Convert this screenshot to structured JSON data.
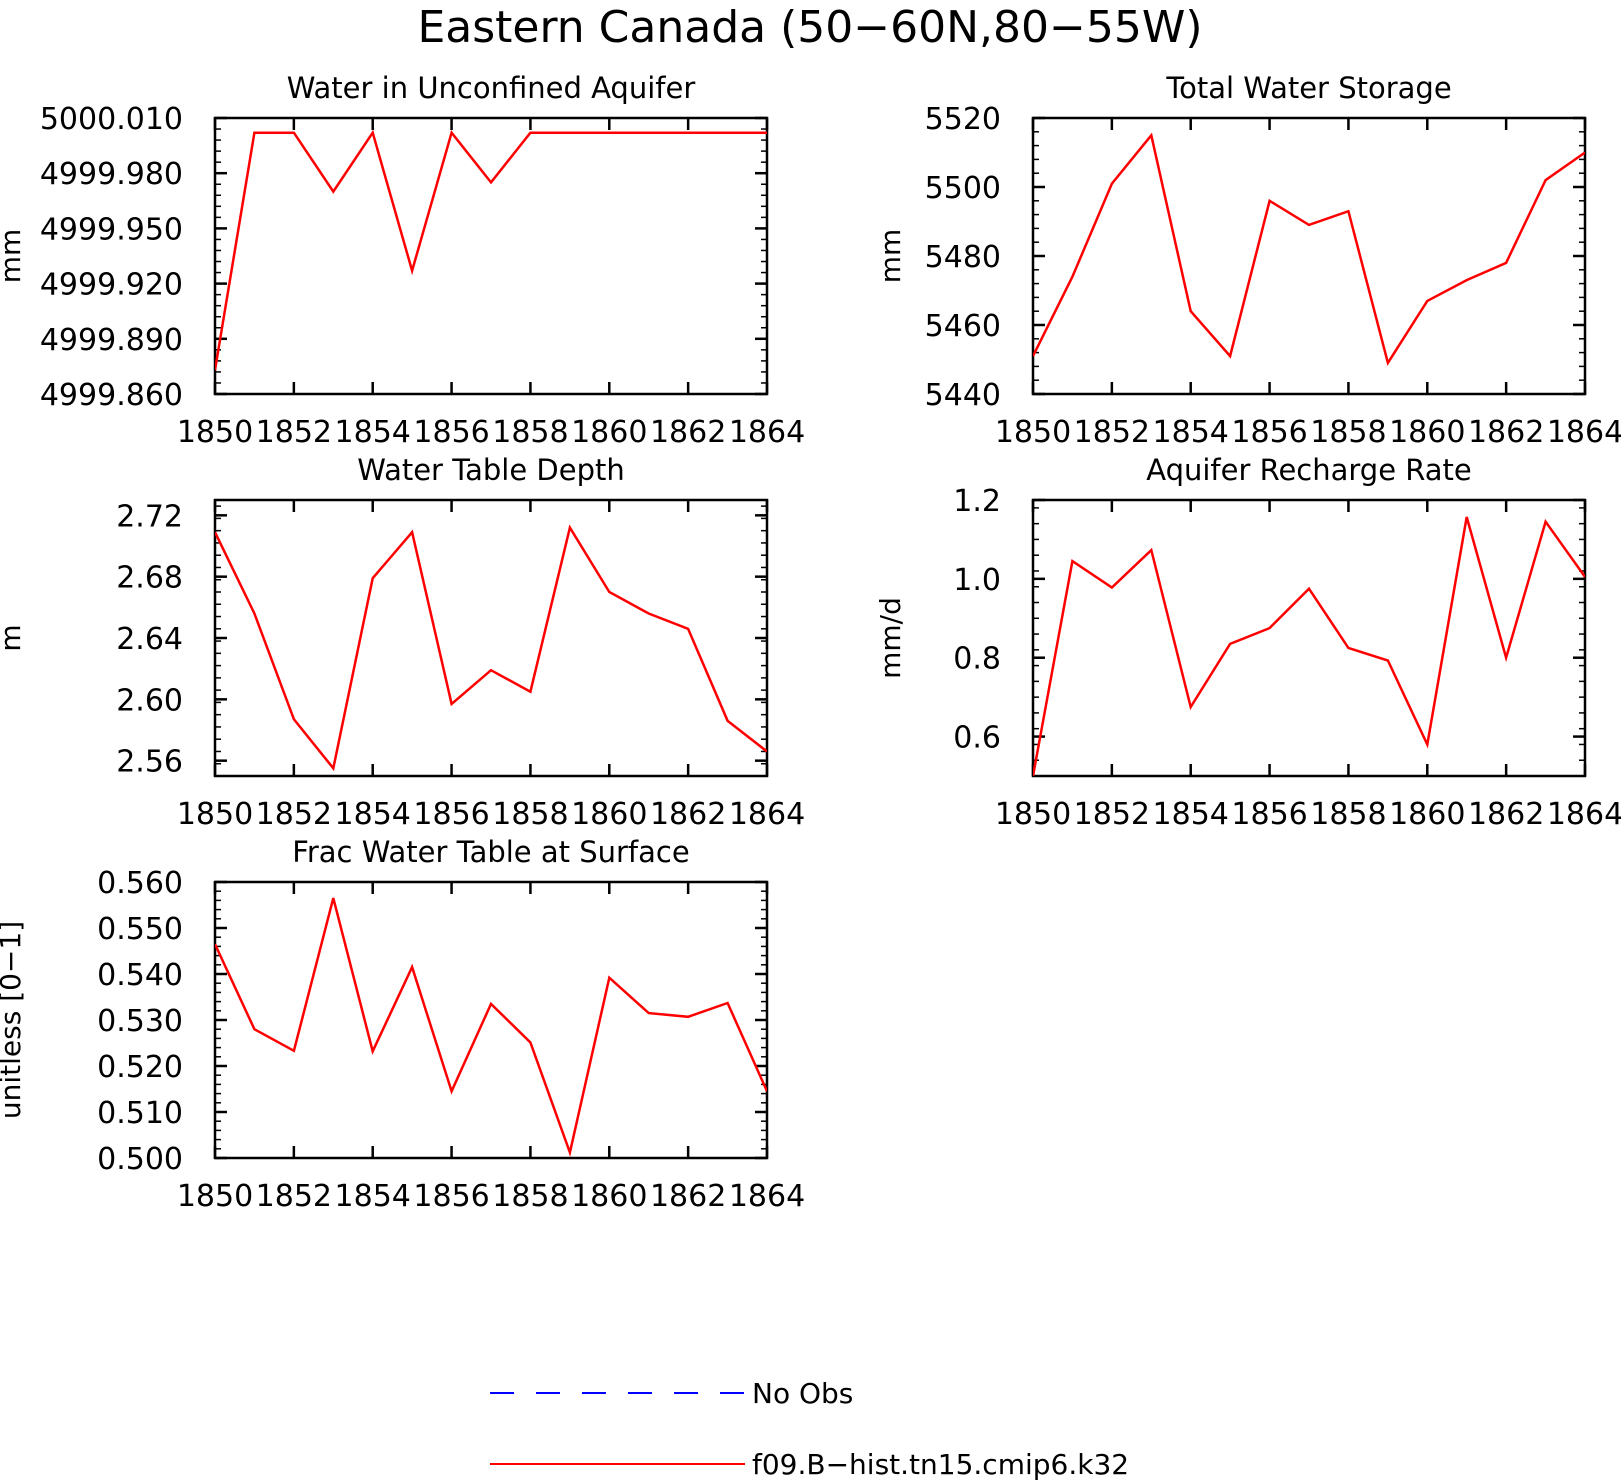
{
  "figure_title": "Eastern Canada (50−60N,80−55W)",
  "colors": {
    "model": "#ff0000",
    "obs": "#0000ff",
    "axis": "#000000"
  },
  "legend": {
    "entries": [
      {
        "label": "No Obs",
        "color": "#0000ff",
        "style": "dashed"
      },
      {
        "label": "f09.B−hist.tn15.cmip6.k32",
        "color": "#ff0000",
        "style": "solid"
      }
    ]
  },
  "chart_data": [
    {
      "type": "line",
      "title": "Water in Unconfined Aquifer",
      "ylabel": "mm",
      "xlim": [
        1850,
        1864
      ],
      "ylim": [
        4999.86,
        5000.01
      ],
      "yticks": [
        4999.86,
        4999.89,
        4999.92,
        4999.95,
        4999.98,
        5000.01
      ],
      "ytick_labels": [
        "4999.860",
        "4999.890",
        "4999.920",
        "4999.950",
        "4999.980",
        "5000.010"
      ],
      "xticks": [
        1850,
        1852,
        1854,
        1856,
        1858,
        1860,
        1862,
        1864
      ],
      "xtick_labels": [
        "1850",
        "1852",
        "1854",
        "1856",
        "1858",
        "1860",
        "1862",
        "1864"
      ],
      "x": [
        1850,
        1851,
        1852,
        1853,
        1854,
        1855,
        1856,
        1857,
        1858,
        1859,
        1860,
        1861,
        1862,
        1863,
        1864
      ],
      "series": [
        {
          "name": "f09.B−hist.tn15.cmip6.k32",
          "values": [
            4999.873,
            5000.002,
            5000.002,
            4999.97,
            5000.002,
            4999.927,
            5000.002,
            4999.975,
            5000.002,
            5000.002,
            5000.002,
            5000.002,
            5000.002,
            5000.002,
            5000.002
          ]
        }
      ]
    },
    {
      "type": "line",
      "title": "Total Water Storage",
      "ylabel": "mm",
      "xlim": [
        1850,
        1864
      ],
      "ylim": [
        5440,
        5520
      ],
      "yticks": [
        5440,
        5460,
        5480,
        5500,
        5520
      ],
      "ytick_labels": [
        "5440",
        "5460",
        "5480",
        "5500",
        "5520"
      ],
      "xticks": [
        1850,
        1852,
        1854,
        1856,
        1858,
        1860,
        1862,
        1864
      ],
      "xtick_labels": [
        "1850",
        "1852",
        "1854",
        "1856",
        "1858",
        "1860",
        "1862",
        "1864"
      ],
      "x": [
        1850,
        1851,
        1852,
        1853,
        1854,
        1855,
        1856,
        1857,
        1858,
        1859,
        1860,
        1861,
        1862,
        1863,
        1864
      ],
      "series": [
        {
          "name": "f09.B−hist.tn15.cmip6.k32",
          "values": [
            5451,
            5474,
            5501,
            5515,
            5464,
            5451,
            5496,
            5489,
            5493,
            5449,
            5467,
            5473,
            5478,
            5502,
            5510
          ]
        }
      ]
    },
    {
      "type": "line",
      "title": "Water Table Depth",
      "ylabel": "m",
      "xlim": [
        1850,
        1864
      ],
      "ylim": [
        2.55,
        2.73
      ],
      "yticks": [
        2.56,
        2.6,
        2.64,
        2.68,
        2.72
      ],
      "ytick_labels": [
        "2.56",
        "2.60",
        "2.64",
        "2.68",
        "2.72"
      ],
      "xticks": [
        1850,
        1852,
        1854,
        1856,
        1858,
        1860,
        1862,
        1864
      ],
      "xtick_labels": [
        "1850",
        "1852",
        "1854",
        "1856",
        "1858",
        "1860",
        "1862",
        "1864"
      ],
      "x": [
        1850,
        1851,
        1852,
        1853,
        1854,
        1855,
        1856,
        1857,
        1858,
        1859,
        1860,
        1861,
        1862,
        1863,
        1864
      ],
      "series": [
        {
          "name": "f09.B−hist.tn15.cmip6.k32",
          "values": [
            2.709,
            2.656,
            2.587,
            2.555,
            2.679,
            2.709,
            2.597,
            2.619,
            2.605,
            2.712,
            2.67,
            2.656,
            2.646,
            2.586,
            2.566
          ]
        }
      ]
    },
    {
      "type": "line",
      "title": "Aquifer Recharge Rate",
      "ylabel": "mm/d",
      "xlim": [
        1850,
        1864
      ],
      "ylim": [
        0.5,
        1.2
      ],
      "yticks": [
        0.6,
        0.8,
        1.0,
        1.2
      ],
      "ytick_labels": [
        "0.6",
        "0.8",
        "1.0",
        "1.2"
      ],
      "xticks": [
        1850,
        1852,
        1854,
        1856,
        1858,
        1860,
        1862,
        1864
      ],
      "xtick_labels": [
        "1850",
        "1852",
        "1854",
        "1856",
        "1858",
        "1860",
        "1862",
        "1864"
      ],
      "x": [
        1850,
        1851,
        1852,
        1853,
        1854,
        1855,
        1856,
        1857,
        1858,
        1859,
        1860,
        1861,
        1862,
        1863,
        1864
      ],
      "series": [
        {
          "name": "f09.B−hist.tn15.cmip6.k32",
          "values": [
            0.5,
            1.045,
            0.978,
            1.073,
            0.675,
            0.835,
            0.875,
            0.975,
            0.825,
            0.793,
            0.58,
            1.157,
            0.8,
            1.145,
            1.005
          ]
        }
      ]
    },
    {
      "type": "line",
      "title": "Frac Water Table at Surface",
      "ylabel": "unitless [0−1]",
      "xlim": [
        1850,
        1864
      ],
      "ylim": [
        0.5,
        0.56
      ],
      "yticks": [
        0.5,
        0.51,
        0.52,
        0.53,
        0.54,
        0.55,
        0.56
      ],
      "ytick_labels": [
        "0.500",
        "0.510",
        "0.520",
        "0.530",
        "0.540",
        "0.550",
        "0.560"
      ],
      "xticks": [
        1850,
        1852,
        1854,
        1856,
        1858,
        1860,
        1862,
        1864
      ],
      "xtick_labels": [
        "1850",
        "1852",
        "1854",
        "1856",
        "1858",
        "1860",
        "1862",
        "1864"
      ],
      "x": [
        1850,
        1851,
        1852,
        1853,
        1854,
        1855,
        1856,
        1857,
        1858,
        1859,
        1860,
        1861,
        1862,
        1863,
        1864
      ],
      "series": [
        {
          "name": "f09.B−hist.tn15.cmip6.k32",
          "values": [
            0.5465,
            0.528,
            0.5233,
            0.5565,
            0.5232,
            0.5415,
            0.5145,
            0.5335,
            0.5251,
            0.5012,
            0.5392,
            0.5315,
            0.5307,
            0.5337,
            0.5145
          ]
        }
      ]
    }
  ]
}
